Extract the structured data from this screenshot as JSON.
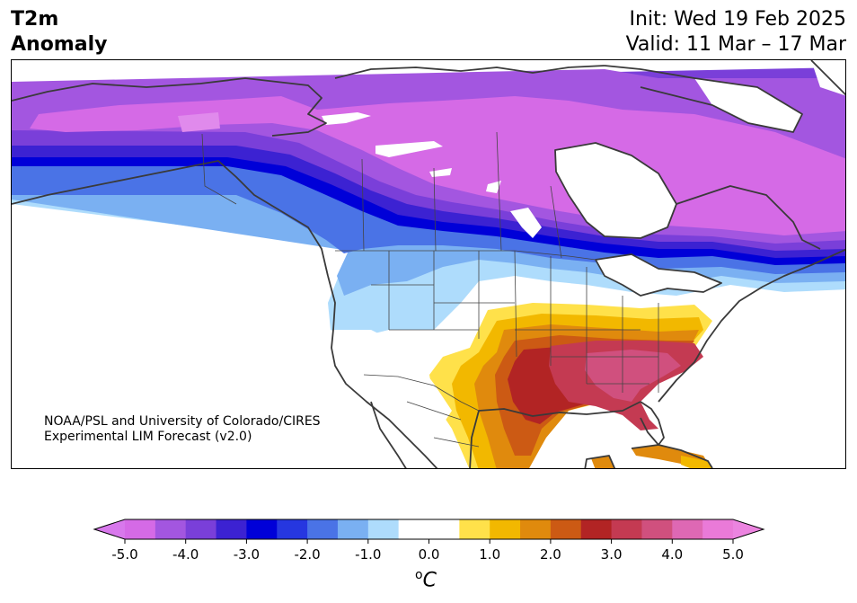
{
  "title": {
    "left_line1": "T2m",
    "left_line2": "Anomaly",
    "init": "Init: Wed 19 Feb 2025",
    "valid": "Valid: 11 Mar – 17 Mar"
  },
  "credit": {
    "line1": "NOAA/PSL and University of Colorado/CIRES",
    "line2": "Experimental LIM Forecast (v2.0)"
  },
  "colorbar": {
    "min": -5.0,
    "max": 5.0,
    "step": 0.5,
    "extend": "both",
    "tick_labels": [
      "-5.0",
      "-4.0",
      "-3.0",
      "-2.0",
      "-1.0",
      "0.0",
      "1.0",
      "2.0",
      "3.0",
      "4.0",
      "5.0"
    ],
    "unit_symbol": "o",
    "unit_letter": "C",
    "colors": [
      "#d56ae6",
      "#a356e0",
      "#7a3fd9",
      "#3c22d2",
      "#0000d8",
      "#2637e0",
      "#4a73e6",
      "#7ab0f2",
      "#aedcfc",
      "#ffffff",
      "#ffffff",
      "#ffe14a",
      "#f2b800",
      "#e08a0d",
      "#cc5a14",
      "#b22424",
      "#c43a52",
      "#d0507e",
      "#de68b4",
      "#ea7ad8"
    ],
    "extend_colors": {
      "low": "#d878ec",
      "high": "#ec84e0"
    }
  },
  "map": {
    "region": "North America",
    "variable": "2m temperature anomaly",
    "palette": {
      "cold_strong": "#d56ae6",
      "cold_purple": "#a356e0",
      "cold_violet": "#7a3fd9",
      "cold_indigo": "#3c22d2",
      "cold_blue": "#0000d8",
      "cold_mid": "#4a73e6",
      "cold_light": "#7ab0f2",
      "cold_pale": "#aedcfc",
      "neutral": "#ffffff",
      "warm_yellow": "#ffe14a",
      "warm_gold": "#f2b800",
      "warm_orange": "#e08a0d",
      "warm_burnt": "#cc5a14",
      "warm_red": "#b22424",
      "warm_crimson": "#c43a52",
      "warm_pink": "#d0507e",
      "coast": "#3a3a3a"
    }
  }
}
